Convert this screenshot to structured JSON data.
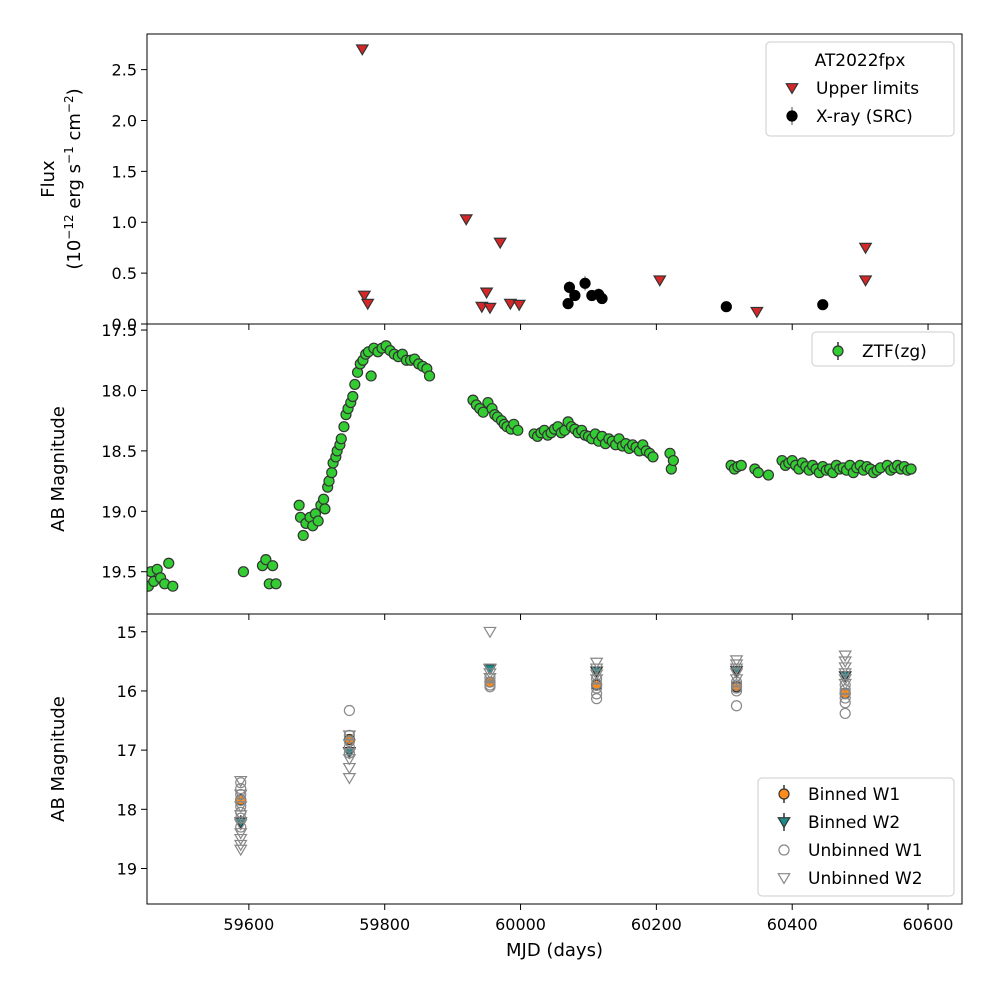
{
  "chart_data": [
    {
      "type": "scatter",
      "title": "",
      "xlabel": "",
      "ylabel": "Flux\n(10^{-12} erg s^{-1} cm^{-2})",
      "ylabel_line1": "Flux",
      "ylabel_line2_parts": [
        "(10",
        "−12",
        " erg s",
        "−1",
        " cm",
        "−2",
        ")"
      ],
      "xlim": [
        59450,
        60650
      ],
      "ylim": [
        0,
        2.85
      ],
      "yticks": [
        0.0,
        0.5,
        1.0,
        1.5,
        2.0,
        2.5
      ],
      "ytick_labels": [
        "0.0",
        "0.5",
        "1.0",
        "1.5",
        "2.0",
        "2.5"
      ],
      "legend_title": "AT2022fpx",
      "legend_position": "upper right",
      "series": [
        {
          "name": "Upper limits",
          "marker": "triangle-down",
          "color": "#d62728",
          "x": [
            59767,
            59770,
            59775,
            59920,
            59943,
            59950,
            59955,
            59970,
            59985,
            59998,
            60205,
            60348,
            60508,
            60508
          ],
          "y": [
            2.7,
            0.28,
            0.2,
            1.03,
            0.17,
            0.31,
            0.16,
            0.8,
            0.2,
            0.19,
            0.43,
            0.12,
            0.75,
            0.43
          ]
        },
        {
          "name": "X-ray (SRC)",
          "marker": "circle",
          "color": "#000000",
          "x": [
            60070,
            60072,
            60080,
            60095,
            60105,
            60115,
            60120,
            60303,
            60445
          ],
          "y": [
            0.2,
            0.36,
            0.28,
            0.4,
            0.28,
            0.29,
            0.25,
            0.17,
            0.19
          ],
          "yerr": [
            0.04,
            0.06,
            0.05,
            0.07,
            0.05,
            0.06,
            0.04,
            0.02,
            0.02
          ]
        }
      ]
    },
    {
      "type": "scatter",
      "title": "",
      "xlabel": "",
      "ylabel": "AB Magnitude",
      "xlim": [
        59450,
        60650
      ],
      "ylim": [
        19.85,
        17.45
      ],
      "yaxis_inverted": true,
      "yticks": [
        17.5,
        18.0,
        18.5,
        19.0,
        19.5
      ],
      "ytick_labels": [
        "17.5",
        "18.0",
        "18.5",
        "19.0",
        "19.5"
      ],
      "legend_position": "upper right",
      "series": [
        {
          "name": "ZTF(zg)",
          "marker": "circle",
          "color": "#33cc33",
          "x": [
            59452,
            59456,
            59460,
            59465,
            59470,
            59476,
            59482,
            59488,
            59592,
            59620,
            59625,
            59630,
            59635,
            59640,
            59674,
            59676,
            59680,
            59684,
            59690,
            59694,
            59698,
            59702,
            59706,
            59710,
            59712,
            59716,
            59718,
            59722,
            59724,
            59728,
            59730,
            59734,
            59736,
            59740,
            59743,
            59746,
            59750,
            59753,
            59756,
            59760,
            59764,
            59768,
            59772,
            59776,
            59780,
            59784,
            59790,
            59796,
            59802,
            59808,
            59814,
            59820,
            59826,
            59832,
            59838,
            59844,
            59850,
            59856,
            59862,
            59866,
            59930,
            59935,
            59940,
            59945,
            59952,
            59958,
            59962,
            59966,
            59972,
            59976,
            59980,
            59986,
            59990,
            59996,
            60020,
            60025,
            60030,
            60035,
            60040,
            60045,
            60050,
            60055,
            60060,
            60065,
            60070,
            60075,
            60080,
            60085,
            60090,
            60095,
            60100,
            60105,
            60110,
            60115,
            60120,
            60125,
            60130,
            60135,
            60140,
            60145,
            60150,
            60155,
            60160,
            60165,
            60170,
            60175,
            60180,
            60185,
            60190,
            60195,
            60220,
            60222,
            60225,
            60310,
            60315,
            60320,
            60325,
            60345,
            60350,
            60365,
            60385,
            60390,
            60395,
            60400,
            60405,
            60410,
            60415,
            60420,
            60425,
            60430,
            60435,
            60440,
            60445,
            60450,
            60455,
            60460,
            60465,
            60470,
            60475,
            60480,
            60485,
            60490,
            60495,
            60500,
            60505,
            60510,
            60515,
            60520,
            60525,
            60530,
            60540,
            60545,
            60550,
            60555,
            60560,
            60565,
            60570,
            60575
          ],
          "y": [
            19.62,
            19.5,
            19.58,
            19.48,
            19.55,
            19.6,
            19.43,
            19.62,
            19.5,
            19.45,
            19.4,
            19.6,
            19.45,
            19.6,
            18.95,
            19.05,
            19.2,
            19.1,
            19.05,
            19.12,
            19.02,
            19.08,
            18.95,
            18.9,
            18.98,
            18.8,
            18.75,
            18.68,
            18.6,
            18.55,
            18.5,
            18.45,
            18.4,
            18.3,
            18.2,
            18.15,
            18.1,
            18.05,
            17.95,
            17.85,
            17.78,
            17.75,
            17.7,
            17.68,
            17.88,
            17.65,
            17.68,
            17.65,
            17.63,
            17.67,
            17.7,
            17.72,
            17.7,
            17.75,
            17.75,
            17.74,
            17.78,
            17.8,
            17.82,
            17.88,
            18.08,
            18.12,
            18.15,
            18.18,
            18.1,
            18.15,
            18.2,
            18.22,
            18.25,
            18.28,
            18.3,
            18.32,
            18.28,
            18.33,
            18.36,
            18.38,
            18.35,
            18.33,
            18.37,
            18.35,
            18.32,
            18.3,
            18.35,
            18.33,
            18.26,
            18.3,
            18.32,
            18.35,
            18.33,
            18.37,
            18.38,
            18.4,
            18.36,
            18.42,
            18.38,
            18.44,
            18.4,
            18.42,
            18.45,
            18.4,
            18.46,
            18.44,
            18.48,
            18.45,
            18.47,
            18.5,
            18.45,
            18.5,
            18.52,
            18.55,
            18.52,
            18.65,
            18.58,
            18.62,
            18.65,
            18.63,
            18.62,
            18.65,
            18.68,
            18.7,
            18.58,
            18.62,
            18.6,
            18.58,
            18.62,
            18.65,
            18.6,
            18.63,
            18.66,
            18.62,
            18.65,
            18.68,
            18.63,
            18.66,
            18.65,
            18.68,
            18.62,
            18.65,
            18.64,
            18.66,
            18.62,
            18.68,
            18.64,
            18.62,
            18.66,
            18.63,
            18.65,
            18.68,
            18.66,
            18.64,
            18.62,
            18.66,
            18.64,
            18.62,
            18.65,
            18.63,
            18.66,
            18.65
          ]
        }
      ]
    },
    {
      "type": "scatter",
      "title": "",
      "xlabel": "MJD (days)",
      "ylabel": "AB Magnitude",
      "xlim": [
        59450,
        60650
      ],
      "ylim": [
        19.6,
        14.7
      ],
      "yaxis_inverted": true,
      "yticks": [
        15,
        16,
        17,
        18,
        19
      ],
      "ytick_labels": [
        "15",
        "16",
        "17",
        "18",
        "19"
      ],
      "xticks": [
        59600,
        59800,
        60000,
        60200,
        60400,
        60600
      ],
      "xtick_labels": [
        "59600",
        "59800",
        "60000",
        "60200",
        "60400",
        "60600"
      ],
      "legend_position": "lower right",
      "series": [
        {
          "name": "Binned W1",
          "marker": "circle",
          "color": "#ff8c1a",
          "x": [
            59588,
            59748,
            59955,
            60112,
            60318,
            60478
          ],
          "y": [
            17.84,
            16.82,
            15.85,
            15.9,
            15.93,
            16.04
          ],
          "yerr": [
            0.1,
            0.08,
            0.05,
            0.05,
            0.05,
            0.06
          ]
        },
        {
          "name": "Binned W2",
          "marker": "triangle-down",
          "color": "#1a8a8a",
          "x": [
            59588,
            59748,
            59955,
            60112,
            60318,
            60478
          ],
          "y": [
            18.22,
            17.03,
            15.63,
            15.67,
            15.66,
            15.75
          ],
          "yerr": [
            0.12,
            0.1,
            0.05,
            0.05,
            0.05,
            0.06
          ]
        },
        {
          "name": "Unbinned W1",
          "marker": "circle-open",
          "color": "#888888",
          "x": [
            59588,
            59588,
            59588,
            59588,
            59588,
            59588,
            59588,
            59588,
            59748,
            59748,
            59748,
            59748,
            59748,
            59955,
            59955,
            59955,
            59955,
            60112,
            60112,
            60112,
            60112,
            60112,
            60318,
            60318,
            60318,
            60318,
            60318,
            60478,
            60478,
            60478,
            60478,
            60478,
            60478
          ],
          "y": [
            17.55,
            17.65,
            17.75,
            17.85,
            17.95,
            18.05,
            18.15,
            18.3,
            16.33,
            16.75,
            16.85,
            16.95,
            17.05,
            15.78,
            15.85,
            15.9,
            15.93,
            15.8,
            15.88,
            15.95,
            16.05,
            16.13,
            15.85,
            15.9,
            15.95,
            16.0,
            16.25,
            15.9,
            15.98,
            16.05,
            16.12,
            16.2,
            16.38
          ]
        },
        {
          "name": "Unbinned W2",
          "marker": "triangle-down-open",
          "color": "#888888",
          "x": [
            59588,
            59588,
            59588,
            59588,
            59588,
            59588,
            59588,
            59588,
            59588,
            59748,
            59748,
            59748,
            59748,
            59748,
            59748,
            59955,
            59955,
            59955,
            59955,
            60112,
            60112,
            60112,
            60112,
            60318,
            60318,
            60318,
            60318,
            60318,
            60478,
            60478,
            60478,
            60478,
            60478,
            60478
          ],
          "y": [
            17.52,
            17.75,
            17.95,
            18.1,
            18.25,
            18.4,
            18.5,
            18.6,
            18.68,
            16.75,
            16.9,
            17.05,
            17.15,
            17.3,
            17.47,
            15.0,
            15.62,
            15.7,
            15.78,
            15.52,
            15.62,
            15.72,
            15.8,
            15.48,
            15.55,
            15.62,
            15.7,
            15.8,
            15.4,
            15.5,
            15.6,
            15.7,
            15.8,
            15.88
          ]
        }
      ]
    }
  ]
}
